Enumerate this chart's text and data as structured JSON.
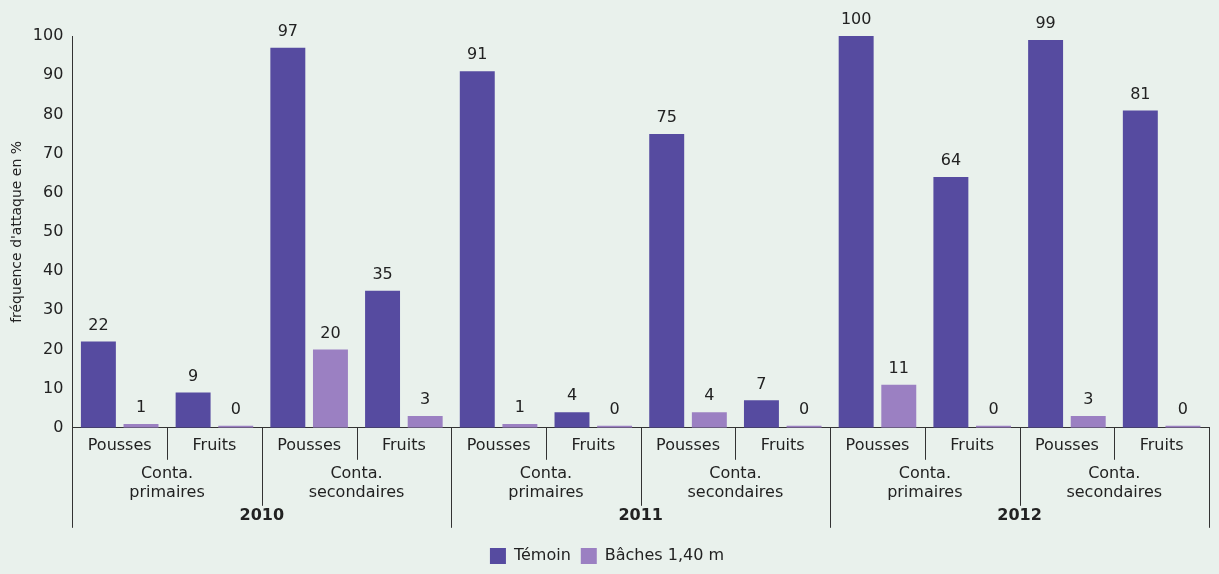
{
  "chart_data": {
    "type": "bar",
    "ylabel": "fréquence d'attaque en %",
    "categories": [
      "Pousses",
      "Fruits",
      "Pousses",
      "Fruits",
      "Pousses",
      "Fruits",
      "Pousses",
      "Fruits",
      "Pousses",
      "Fruits",
      "Pousses",
      "Fruits"
    ],
    "series": [
      {
        "name": "Témoin",
        "color": "#564ba0",
        "values": [
          22,
          9,
          97,
          35,
          91,
          4,
          75,
          7,
          100,
          64,
          99,
          81
        ]
      },
      {
        "name": "Bâches 1,40 m",
        "color": "#9b80c2",
        "values": [
          1,
          0,
          20,
          3,
          1,
          0,
          4,
          0,
          11,
          0,
          3,
          0
        ]
      }
    ],
    "annotations": [
      "Conta.\nprimaires",
      "Conta.\nsecondaires",
      "Conta.\nprimaires",
      "Conta.\nsecondaires",
      "Conta.\nprimaires",
      "Conta.\nsecondaires",
      "2010",
      "2011",
      "2012"
    ],
    "ylim": [
      0,
      100
    ],
    "yticks": [
      0,
      10,
      20,
      30,
      40,
      50,
      60,
      70,
      80,
      90,
      100
    ],
    "data_labels": true,
    "grid": false,
    "legend": "bottom"
  }
}
